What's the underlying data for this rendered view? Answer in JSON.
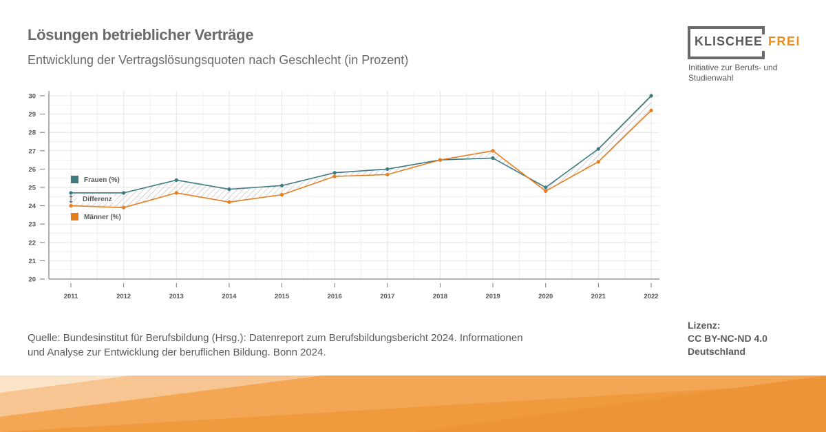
{
  "header": {
    "title": "Lösungen betrieblicher Verträge",
    "subtitle": "Entwicklung der Vertragslösungsquoten nach Geschlecht (in Prozent)"
  },
  "logo": {
    "word1": "KLISCHEE",
    "word2": "FREI",
    "tagline": "Initiative zur Berufs- und Studienwahl"
  },
  "source": "Quelle: Bundesinstitut für Berufsbildung (Hrsg.): Datenreport zum Berufsbildungsbericht 2024. Informationen und Analyse zur Entwicklung der beruflichen Bildung. Bonn 2024.",
  "license": {
    "label": "Lizenz:",
    "line1": "CC BY-NC-ND 4.0",
    "line2": "Deutschland"
  },
  "colors": {
    "frauen": "#3f7a82",
    "maenner": "#e87d1e",
    "grid": "#e4e4e4"
  },
  "chart_data": {
    "type": "line",
    "title": "Lösungen betrieblicher Verträge",
    "x": [
      "2011",
      "2012",
      "2013",
      "2014",
      "2015",
      "2016",
      "2017",
      "2018",
      "2019",
      "2020",
      "2021",
      "2022"
    ],
    "ylim": [
      20,
      30
    ],
    "yticks": [
      "20",
      "21",
      "22",
      "23",
      "24",
      "25",
      "26",
      "27",
      "28",
      "29",
      "30"
    ],
    "grid": true,
    "legend_placement": "left",
    "difference_label": "Differenz",
    "series": [
      {
        "name": "Frauen (%)",
        "values": [
          24.7,
          24.7,
          25.4,
          24.9,
          25.1,
          25.8,
          26.0,
          26.5,
          26.6,
          25.0,
          27.1,
          30.0
        ]
      },
      {
        "name": "Männer (%)",
        "values": [
          24.0,
          23.9,
          24.7,
          24.2,
          24.6,
          25.6,
          25.7,
          26.5,
          27.0,
          24.8,
          26.4,
          29.2
        ]
      }
    ]
  }
}
